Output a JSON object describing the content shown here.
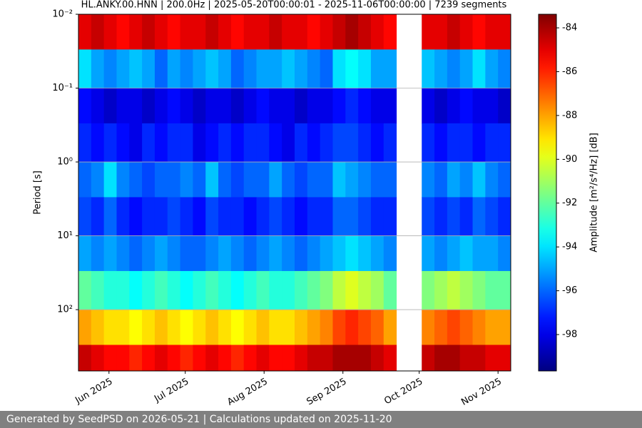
{
  "chart_data": {
    "type": "heatmap",
    "title": "HL.ANKY.00.HNN | 200.0Hz | 2025-05-20T00:00:01 - 2025-11-06T00:00:00 | 7239 segments",
    "ylabel": "Period [s]",
    "colorbar_label": "Amplitude [m²/s⁴/Hz] [dB]",
    "xlim": [
      "2025-05-20",
      "2025-11-06"
    ],
    "xticks": [
      {
        "value": "2025-06",
        "label": "Jun 2025"
      },
      {
        "value": "2025-07",
        "label": "Jul 2025"
      },
      {
        "value": "2025-08",
        "label": "Aug 2025"
      },
      {
        "value": "2025-09",
        "label": "Sep 2025"
      },
      {
        "value": "2025-10",
        "label": "Oct 2025"
      },
      {
        "value": "2025-11",
        "label": "Nov 2025"
      }
    ],
    "ylim": [
      0.01,
      676
    ],
    "ylog": true,
    "yinverted": true,
    "yticks": [
      {
        "value": 0.01,
        "label": "10⁻²"
      },
      {
        "value": 0.1,
        "label": "10⁻¹"
      },
      {
        "value": 1,
        "label": "10⁰"
      },
      {
        "value": 10,
        "label": "10¹"
      },
      {
        "value": 100,
        "label": "10²"
      }
    ],
    "grid": true,
    "colormap": "jet",
    "clim": [
      -99.66,
      -83.38
    ],
    "cticks": [
      -84,
      -86,
      -88,
      -90,
      -92,
      -94,
      -96,
      -98
    ],
    "period_bins": [
      0.01,
      0.03,
      0.1,
      0.3,
      1,
      3,
      10,
      30,
      100,
      300,
      676
    ],
    "z": [
      [
        -85,
        -84.5,
        -85,
        -85.5,
        -85,
        -84.5,
        -85,
        -85.5,
        -85,
        -85,
        -84.5,
        -85,
        -85.5,
        -85,
        -85,
        -84.5,
        -85,
        -85,
        -85.5,
        -85,
        -84.5,
        -84,
        -84.5,
        -85,
        -85.5,
        null,
        null,
        -85,
        -85,
        -84.5,
        -85,
        -85.5,
        -85,
        -85
      ],
      [
        -94,
        -95,
        -95.5,
        -95,
        -94.5,
        -95,
        -96,
        -95,
        -95.5,
        -95,
        -94.5,
        -95,
        -96,
        -95.5,
        -95,
        -95,
        -94.5,
        -95,
        -95.5,
        -96,
        -94,
        -93.5,
        -94,
        -95,
        -95,
        null,
        null,
        -94.5,
        -95,
        -95.5,
        -95,
        -94,
        -95,
        -95.5
      ],
      [
        -97.5,
        -98,
        -98.5,
        -98,
        -98,
        -98.5,
        -98,
        -97.5,
        -98,
        -98.5,
        -98,
        -98,
        -98.5,
        -98,
        -97.5,
        -98,
        -98,
        -98.5,
        -98,
        -98,
        -97.5,
        -97,
        -97.5,
        -98,
        -98,
        null,
        null,
        -98,
        -98.5,
        -98,
        -97.5,
        -98,
        -98,
        -98.5
      ],
      [
        -97,
        -97.5,
        -97,
        -97.5,
        -98,
        -97,
        -97.5,
        -97,
        -97,
        -98,
        -97.5,
        -97,
        -97.5,
        -97,
        -97,
        -97.5,
        -98,
        -97,
        -97.5,
        -97,
        -96.5,
        -96.5,
        -97,
        -97.5,
        -97,
        null,
        null,
        -97,
        -97.5,
        -97,
        -97,
        -97.5,
        -97,
        -97
      ],
      [
        -96,
        -95.5,
        -94,
        -95.5,
        -96,
        -96.5,
        -96,
        -96,
        -95.5,
        -96,
        -94.5,
        -96,
        -96.5,
        -96,
        -96,
        -95,
        -96,
        -96.5,
        -96,
        -96,
        -94.5,
        -95,
        -95.5,
        -96,
        -96,
        null,
        null,
        -95.5,
        -96,
        -95,
        -95.5,
        -94.5,
        -95.5,
        -96
      ],
      [
        -96.5,
        -97,
        -96,
        -97,
        -97.5,
        -97,
        -97,
        -96.5,
        -97,
        -97.5,
        -96.5,
        -97,
        -97,
        -97.5,
        -97,
        -96.5,
        -97,
        -97.5,
        -97,
        -97,
        -96,
        -96,
        -96.5,
        -97,
        -97,
        null,
        null,
        -96.5,
        -97,
        -96.5,
        -97,
        -96,
        -96.5,
        -97
      ],
      [
        -95,
        -95.5,
        -95,
        -95.5,
        -96,
        -95.5,
        -95,
        -95.5,
        -96,
        -96,
        -95.5,
        -95,
        -95.5,
        -96,
        -95.5,
        -95,
        -95.5,
        -96,
        -95.5,
        -95,
        -94.5,
        -94,
        -94.5,
        -95,
        -95.5,
        null,
        null,
        -95,
        -95.5,
        -95,
        -94.5,
        -95,
        -95,
        -95.5
      ],
      [
        -92,
        -92.5,
        -93,
        -93,
        -93.5,
        -93,
        -92.5,
        -93,
        -93.5,
        -93,
        -92.5,
        -93,
        -93.5,
        -93,
        -92.5,
        -93,
        -93,
        -92.5,
        -92,
        -91.5,
        -90.5,
        -90,
        -90.5,
        -91,
        -92,
        null,
        null,
        -91.5,
        -91,
        -90.5,
        -91,
        -91.5,
        -92,
        -92
      ],
      [
        -88,
        -88.5,
        -89,
        -89,
        -89.5,
        -89,
        -88.5,
        -89,
        -89.5,
        -89,
        -88.5,
        -89,
        -89.5,
        -89,
        -88.5,
        -89,
        -89,
        -88.5,
        -88,
        -87.5,
        -86.5,
        -86,
        -86.5,
        -87,
        -88,
        null,
        null,
        -87.5,
        -87,
        -86.5,
        -87,
        -87.5,
        -88,
        -88
      ],
      [
        -84.5,
        -85,
        -85.5,
        -85.5,
        -86,
        -85.5,
        -85,
        -85.5,
        -86,
        -85.5,
        -85,
        -85.5,
        -86,
        -85.5,
        -85,
        -85.5,
        -85.5,
        -85,
        -84.5,
        -84.5,
        -84,
        -84,
        -84,
        -84.5,
        -85,
        null,
        null,
        -84.5,
        -84,
        -84,
        -84.5,
        -84.5,
        -85,
        -85
      ]
    ]
  },
  "footer": "Generated by SeedPSD on 2026-05-21 | Calculations updated on 2025-11-20"
}
